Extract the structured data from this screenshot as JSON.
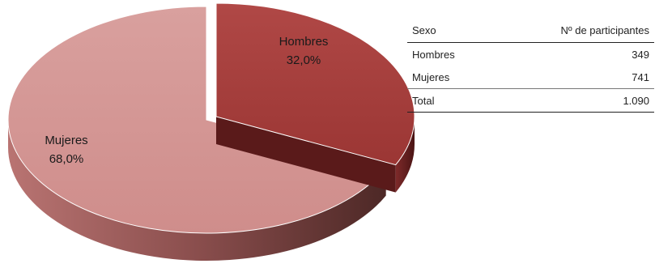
{
  "chart_data": {
    "type": "pie",
    "categories": [
      "Hombres",
      "Mujeres"
    ],
    "values": [
      32.0,
      68.0
    ],
    "labels": [
      {
        "name": "Hombres",
        "percent": "32,0%"
      },
      {
        "name": "Mujeres",
        "percent": "68,0%"
      }
    ],
    "colors": {
      "Hombres": "#a8403f",
      "Mujeres": "#d99a98"
    },
    "style": "3d-exploded"
  },
  "table": {
    "headers": [
      "Sexo",
      "Nº de participantes"
    ],
    "rows": [
      {
        "sexo": "Hombres",
        "count": "349"
      },
      {
        "sexo": "Mujeres",
        "count": "741"
      }
    ],
    "total": {
      "sexo": "Total",
      "count": "1.090"
    }
  }
}
